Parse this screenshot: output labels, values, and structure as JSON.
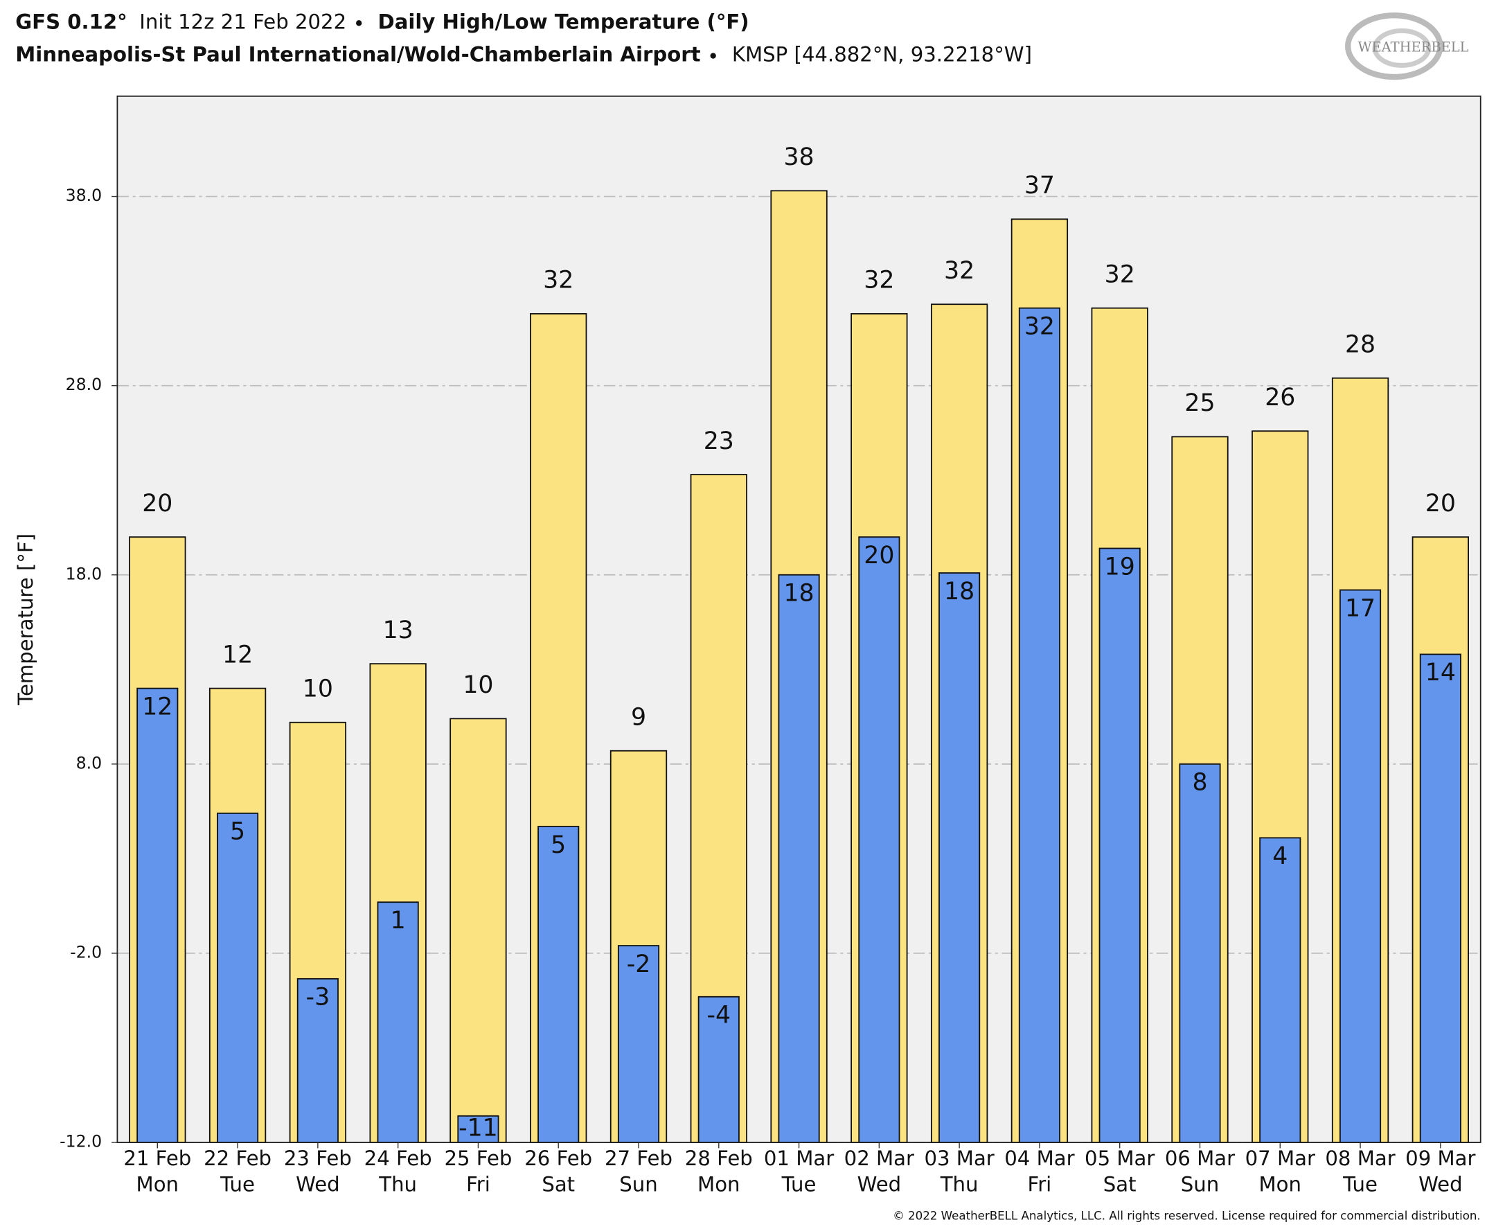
{
  "chart_data": {
    "type": "bar",
    "model": "GFS 0.12°",
    "init": "Init 12z 21 Feb 2022",
    "title": "Daily High/Low Temperature (°F)",
    "location": "Minneapolis-St Paul International/Wold-Chamberlain Airport",
    "station": "KMSP [44.882°N, 93.2218°W]",
    "logo": "WEATHERBELL",
    "copyright": "© 2022 WeatherBELL Analytics, LLC. All rights reserved. License required for commercial distribution.",
    "y_label": "Temperature [°F]",
    "categories": [
      "21 Feb",
      "22 Feb",
      "23 Feb",
      "24 Feb",
      "25 Feb",
      "26 Feb",
      "27 Feb",
      "28 Feb",
      "01 Mar",
      "02 Mar",
      "03 Mar",
      "04 Mar",
      "05 Mar",
      "06 Mar",
      "07 Mar",
      "08 Mar",
      "09 Mar"
    ],
    "weekdays": [
      "Mon",
      "Tue",
      "Wed",
      "Thu",
      "Fri",
      "Sat",
      "Sun",
      "Mon",
      "Tue",
      "Wed",
      "Thu",
      "Fri",
      "Sat",
      "Sun",
      "Mon",
      "Tue",
      "Wed"
    ],
    "series": [
      {
        "name": "High",
        "color": "#fbe381",
        "values": [
          20,
          12,
          10.2,
          13.3,
          10.4,
          31.8,
          8.7,
          23.3,
          38.3,
          31.8,
          32.3,
          36.8,
          32.1,
          25.3,
          25.6,
          28.4,
          20
        ],
        "value_labels": [
          "20",
          "12",
          "10",
          "13",
          "10",
          "32",
          "9",
          "23",
          "38",
          "32",
          "32",
          "37",
          "32",
          "25",
          "26",
          "28",
          "20"
        ]
      },
      {
        "name": "Low",
        "color": "#6495ed",
        "values": [
          12,
          5.4,
          -3.35,
          0.7,
          -10.6,
          4.7,
          -1.6,
          -4.3,
          18,
          20,
          18.1,
          32.1,
          19.4,
          8,
          4.1,
          17.2,
          13.8
        ],
        "value_labels": [
          "12",
          "5",
          "-3",
          "1",
          "-11",
          "5",
          "-2",
          "-4",
          "18",
          "20",
          "18",
          "32",
          "19",
          "8",
          "4",
          "17",
          "14"
        ]
      }
    ],
    "ylim": [
      -12,
      43.3
    ],
    "yticks": [
      {
        "value": -12,
        "label": "-12.0"
      },
      {
        "value": -2,
        "label": "-2.0"
      },
      {
        "value": 8,
        "label": "8.0"
      },
      {
        "value": 18,
        "label": "18.0"
      },
      {
        "value": 28,
        "label": "28.0"
      },
      {
        "value": 38,
        "label": "38.0"
      }
    ],
    "grid": true
  }
}
